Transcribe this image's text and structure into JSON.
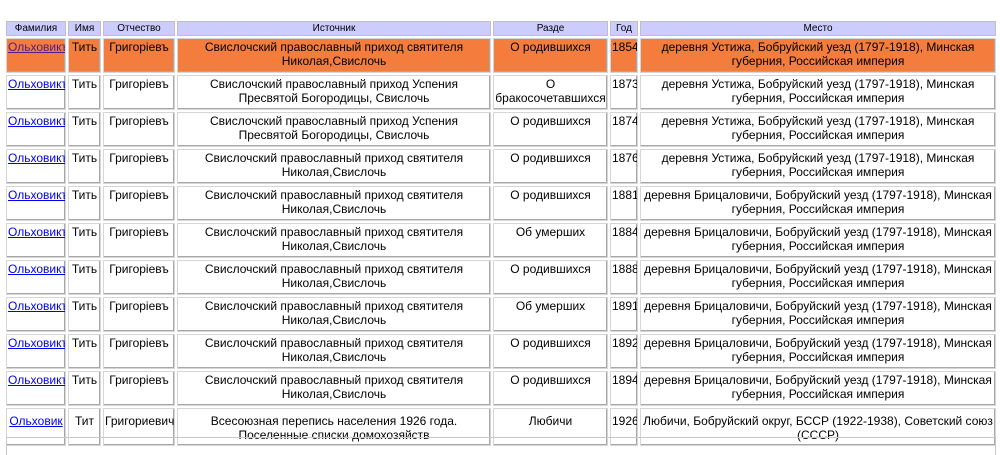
{
  "table": {
    "headers": [
      "Фамилия",
      "Имя",
      "Отчество",
      "Источник",
      "Разде",
      "Год",
      "Место"
    ],
    "rows": [
      {
        "surname": "Ольховикъ",
        "name": "Тить",
        "patronymic": "Григорiевъ",
        "source": "Свислочский православный приход святителя Николая,Свислочь",
        "section": "О родившихся",
        "year": "1854",
        "place": "деревня Устижа, Бобруйский уезд (1797-1918), Минская губерния, Российская империя"
      },
      {
        "surname": "Ольховикъ",
        "name": "Тить",
        "patronymic": "Григорiевъ",
        "source": "Свислочский православный приход Успения Пресвятой Богородицы, Свислочь",
        "section": "О бракосочетавшихся",
        "year": "1873",
        "place": "деревня Устижа, Бобруйский уезд (1797-1918), Минская губерния, Российская империя"
      },
      {
        "surname": "Ольховикъ",
        "name": "Тить",
        "patronymic": "Григорiевъ",
        "source": "Свислочский православный приход Успения Пресвятой Богородицы, Свислочь",
        "section": "О родившихся",
        "year": "1874",
        "place": "деревня Устижа, Бобруйский уезд (1797-1918), Минская губерния, Российская империя"
      },
      {
        "surname": "Ольховикъ",
        "name": "Тить",
        "patronymic": "Григорiевъ",
        "source": "Свислочский православный приход святителя Николая,Свислочь",
        "section": "О родившихся",
        "year": "1876",
        "place": "деревня Устижа, Бобруйский уезд (1797-1918), Минская губерния, Российская империя"
      },
      {
        "surname": "Ольховикъ",
        "name": "Тить",
        "patronymic": "Григорiевъ",
        "source": "Свислочский православный приход святителя Николая,Свислочь",
        "section": "О родившихся",
        "year": "1881",
        "place": "деревня Брицаловичи, Бобруйский уезд (1797-1918), Минская губерния, Российская империя"
      },
      {
        "surname": "Ольховикъ",
        "name": "Тить",
        "patronymic": "Григорiевъ",
        "source": "Свислочский православный приход святителя Николая,Свислочь",
        "section": "Об умерших",
        "year": "1884",
        "place": "деревня Брицаловичи, Бобруйский уезд (1797-1918), Минская губерния, Российская империя"
      },
      {
        "surname": "Ольховикъ",
        "name": "Тить",
        "patronymic": "Григорiевъ",
        "source": "Свислочский православный приход святителя Николая,Свислочь",
        "section": "О родившихся",
        "year": "1888",
        "place": "деревня Брицаловичи, Бобруйский уезд (1797-1918), Минская губерния, Российская империя"
      },
      {
        "surname": "Ольховикъ",
        "name": "Тить",
        "patronymic": "Григорiевъ",
        "source": "Свислочский православный приход святителя Николая,Свислочь",
        "section": "Об умерших",
        "year": "1891",
        "place": "деревня Брицаловичи, Бобруйский уезд (1797-1918), Минская губерния, Российская империя"
      },
      {
        "surname": "Ольховикъ",
        "name": "Тить",
        "patronymic": "Григорiевъ",
        "source": "Свислочский православный приход святителя Николая,Свислочь",
        "section": "О родившихся",
        "year": "1892",
        "place": "деревня Брицаловичи, Бобруйский уезд (1797-1918), Минская губерния, Российская империя"
      },
      {
        "surname": "Ольховикъ",
        "name": "Тить",
        "patronymic": "Григорiевъ",
        "source": "Свислочский православный приход святителя Николая,Свислочь",
        "section": "О родившихся",
        "year": "1894",
        "place": "деревня Брицаловичи, Бобруйский уезд (1797-1918), Минская губерния, Российская империя"
      },
      {
        "surname": "Ольховик",
        "name": "Тит",
        "patronymic": "Григориевич",
        "source": "Всесоюзная перепись населения 1926 года. Поселенные списки домохозяйств",
        "section": "Любичи",
        "year": "1926",
        "place": "Любичи, Бобруйский округ, БССР (1922-1938), Советский союз (СССР)"
      }
    ]
  },
  "colors": {
    "header_bg": "#ccccff",
    "highlight_row": "#f47c3c",
    "link": "#0000ee"
  }
}
